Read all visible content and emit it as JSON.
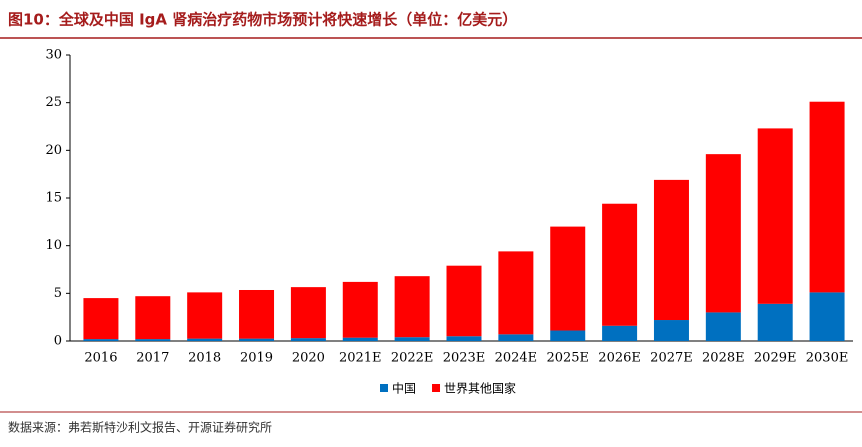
{
  "chart_data": {
    "type": "stacked-bar",
    "title": "图10：全球及中国 IgA 肾病治疗药物市场预计将快速增长（单位：亿美元）",
    "categories": [
      "2016",
      "2017",
      "2018",
      "2019",
      "2020",
      "2021E",
      "2022E",
      "2023E",
      "2024E",
      "2025E",
      "2026E",
      "2027E",
      "2028E",
      "2029E",
      "2030E"
    ],
    "series": [
      {
        "name": "中国",
        "color": "#0070c0",
        "values": [
          0.2,
          0.2,
          0.25,
          0.25,
          0.3,
          0.35,
          0.4,
          0.5,
          0.7,
          1.1,
          1.6,
          2.2,
          3.0,
          3.9,
          5.1
        ]
      },
      {
        "name": "世界其他国家",
        "color": "#ff0000",
        "values": [
          4.3,
          4.5,
          4.85,
          5.1,
          5.35,
          5.85,
          6.4,
          7.4,
          8.7,
          10.9,
          12.8,
          14.7,
          16.6,
          18.4,
          20.0
        ]
      }
    ],
    "ylim": [
      0,
      30
    ],
    "yticks": [
      0,
      5,
      10,
      15,
      20,
      25,
      30
    ],
    "source": "数据来源：弗若斯特沙利文报告、开源证券研究所"
  }
}
